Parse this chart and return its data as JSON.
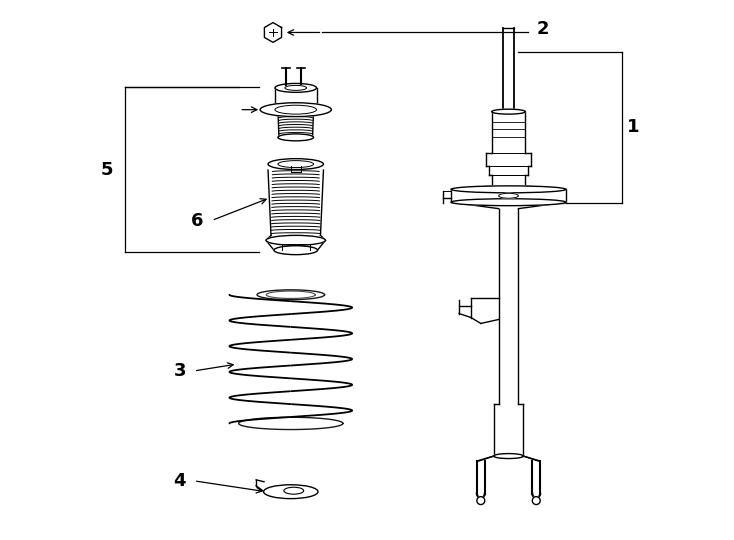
{
  "background_color": "#ffffff",
  "line_color": "#000000",
  "fig_width": 7.34,
  "fig_height": 5.4,
  "dpi": 100,
  "label_fontsize": 13
}
